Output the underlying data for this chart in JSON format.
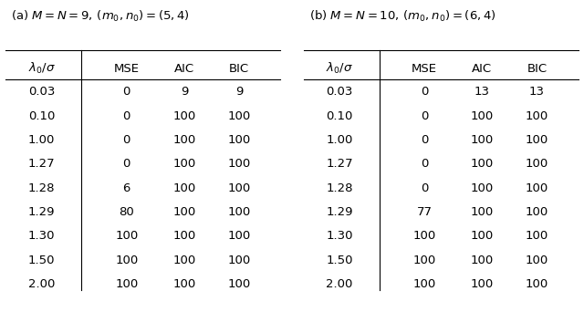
{
  "title_a": "(a) $M = N = 9,\\, (m_0, n_0) = (5, 4)$",
  "title_b": "(b) $M = N = 10,\\, (m_0, n_0) = (6, 4)$",
  "col_headers": [
    "$\\lambda_0/\\sigma$",
    "MSE",
    "AIC",
    "BIC"
  ],
  "table_a": [
    [
      "0.03",
      "0",
      "9",
      "9"
    ],
    [
      "0.10",
      "0",
      "100",
      "100"
    ],
    [
      "1.00",
      "0",
      "100",
      "100"
    ],
    [
      "1.27",
      "0",
      "100",
      "100"
    ],
    [
      "1.28",
      "6",
      "100",
      "100"
    ],
    [
      "1.29",
      "80",
      "100",
      "100"
    ],
    [
      "1.30",
      "100",
      "100",
      "100"
    ],
    [
      "1.50",
      "100",
      "100",
      "100"
    ],
    [
      "2.00",
      "100",
      "100",
      "100"
    ]
  ],
  "table_b": [
    [
      "0.03",
      "0",
      "13",
      "13"
    ],
    [
      "0.10",
      "0",
      "100",
      "100"
    ],
    [
      "1.00",
      "0",
      "100",
      "100"
    ],
    [
      "1.27",
      "0",
      "100",
      "100"
    ],
    [
      "1.28",
      "0",
      "100",
      "100"
    ],
    [
      "1.29",
      "77",
      "100",
      "100"
    ],
    [
      "1.30",
      "100",
      "100",
      "100"
    ],
    [
      "1.50",
      "100",
      "100",
      "100"
    ],
    [
      "2.00",
      "100",
      "100",
      "100"
    ]
  ],
  "bg_color": "#ffffff",
  "text_color": "#000000",
  "font_size": 9.5,
  "title_font_size": 9.5
}
